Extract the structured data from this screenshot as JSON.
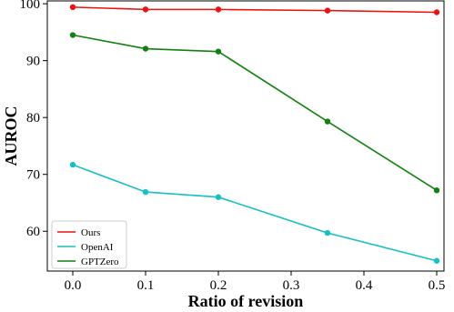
{
  "chart_data": {
    "type": "line",
    "xlabel": "Ratio of revision",
    "ylabel": "AUROC",
    "xlim": [
      -0.035,
      0.51
    ],
    "ylim": [
      53,
      100.5
    ],
    "xticks": [
      0.0,
      0.1,
      0.2,
      0.3,
      0.4,
      0.5
    ],
    "xtick_labels": [
      "0.0",
      "0.1",
      "0.2",
      "0.3",
      "0.4",
      "0.5"
    ],
    "yticks": [
      60,
      70,
      80,
      90,
      100
    ],
    "ytick_labels": [
      "60",
      "70",
      "80",
      "90",
      "100"
    ],
    "grid": false,
    "legend_position": "lower-left",
    "x": [
      0.0,
      0.1,
      0.2,
      0.35,
      0.5
    ],
    "series": [
      {
        "name": "Ours",
        "color": "#ee1111",
        "values": [
          99.4,
          99.0,
          99.0,
          98.8,
          98.5
        ]
      },
      {
        "name": "OpenAI",
        "color": "#17bfc2",
        "values": [
          71.7,
          66.9,
          66.0,
          59.7,
          54.8
        ]
      },
      {
        "name": "GPTZero",
        "color": "#118011",
        "values": [
          94.5,
          92.1,
          91.6,
          79.3,
          67.2
        ]
      }
    ]
  }
}
